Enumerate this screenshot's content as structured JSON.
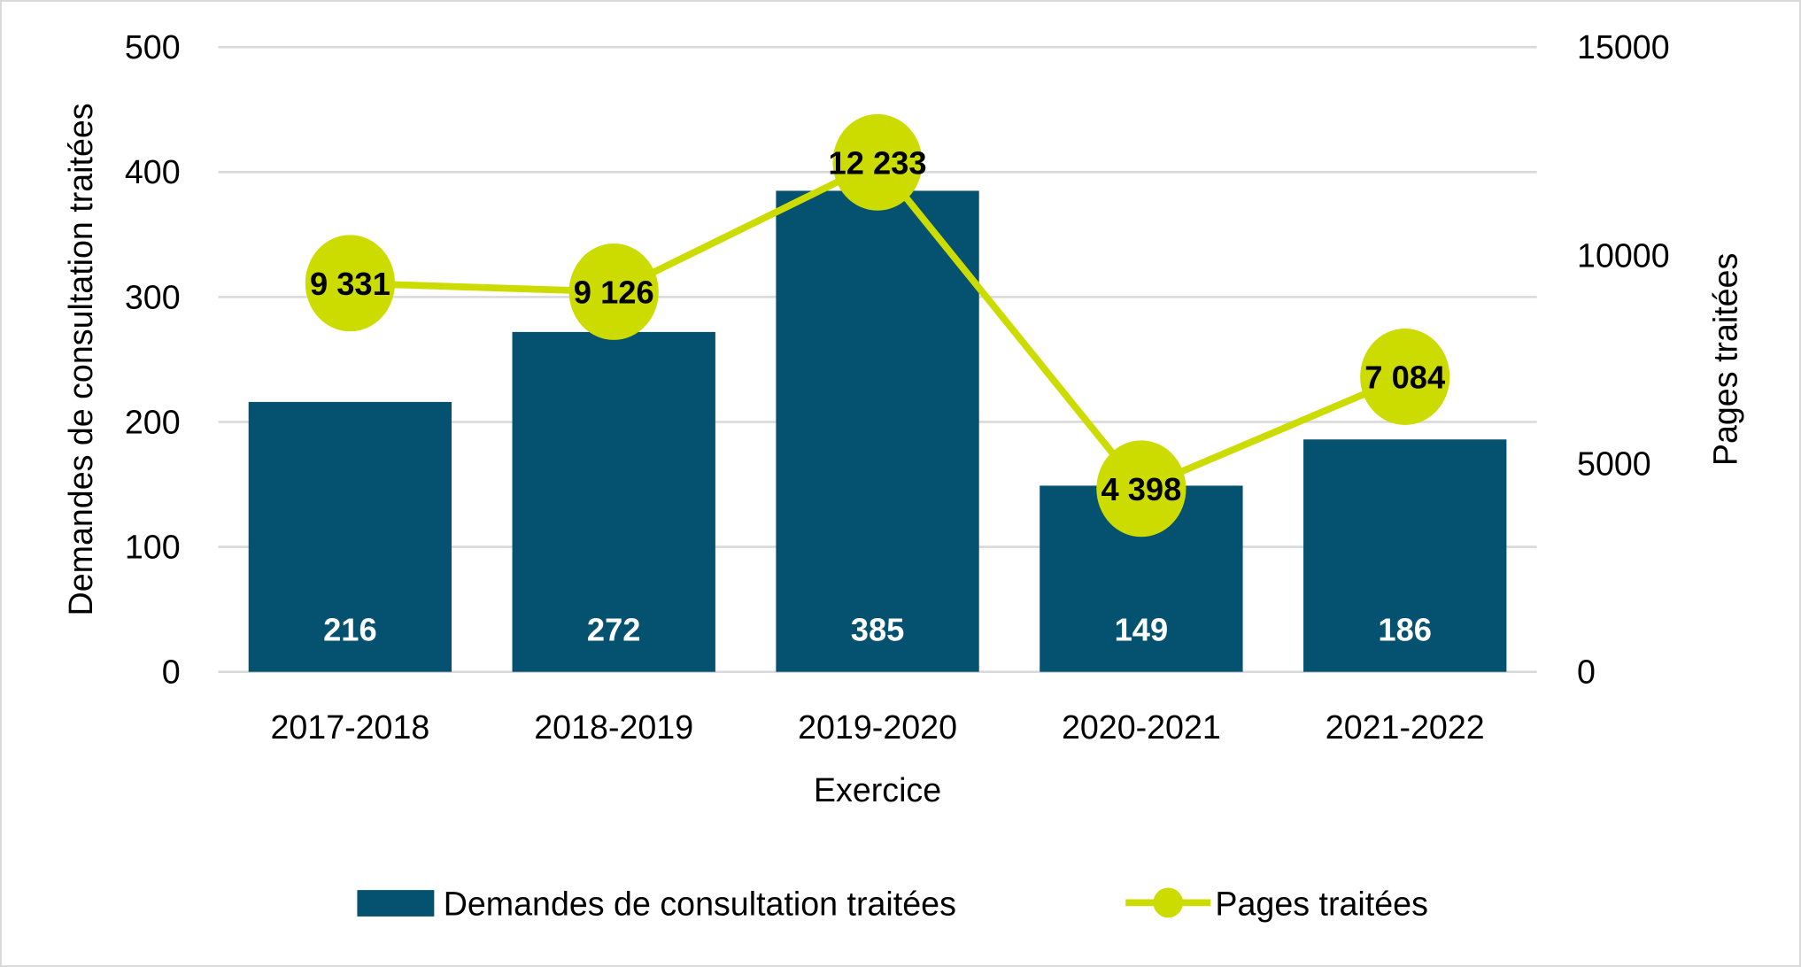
{
  "chart_data": {
    "type": "bar",
    "title": "",
    "xlabel": "Exercice",
    "ylabel": "Demandes de consultation traitées",
    "y2label": "Pages traitées",
    "categories": [
      "2017-2018",
      "2018-2019",
      "2019-2020",
      "2020-2021",
      "2021-2022"
    ],
    "ylim": [
      0,
      500
    ],
    "y2lim": [
      0,
      15000
    ],
    "yticks": [
      "0",
      "100",
      "200",
      "300",
      "400",
      "500"
    ],
    "y2ticks": [
      "0",
      "5000",
      "10000",
      "15000"
    ],
    "grid": true,
    "legend_position": "bottom",
    "series": [
      {
        "name": "Demandes de consultation traitées",
        "type": "bar",
        "axis": "left",
        "color": "#04526F",
        "values": [
          216,
          272,
          385,
          149,
          186
        ],
        "labels": [
          "216",
          "272",
          "385",
          "149",
          "186"
        ]
      },
      {
        "name": "Pages traitées",
        "type": "line",
        "axis": "right",
        "color": "#CDDC00",
        "values": [
          9331,
          9126,
          12233,
          4398,
          7084
        ],
        "labels": [
          "9 331",
          "9 126",
          "12 233",
          "4 398",
          "7 084"
        ]
      }
    ]
  }
}
